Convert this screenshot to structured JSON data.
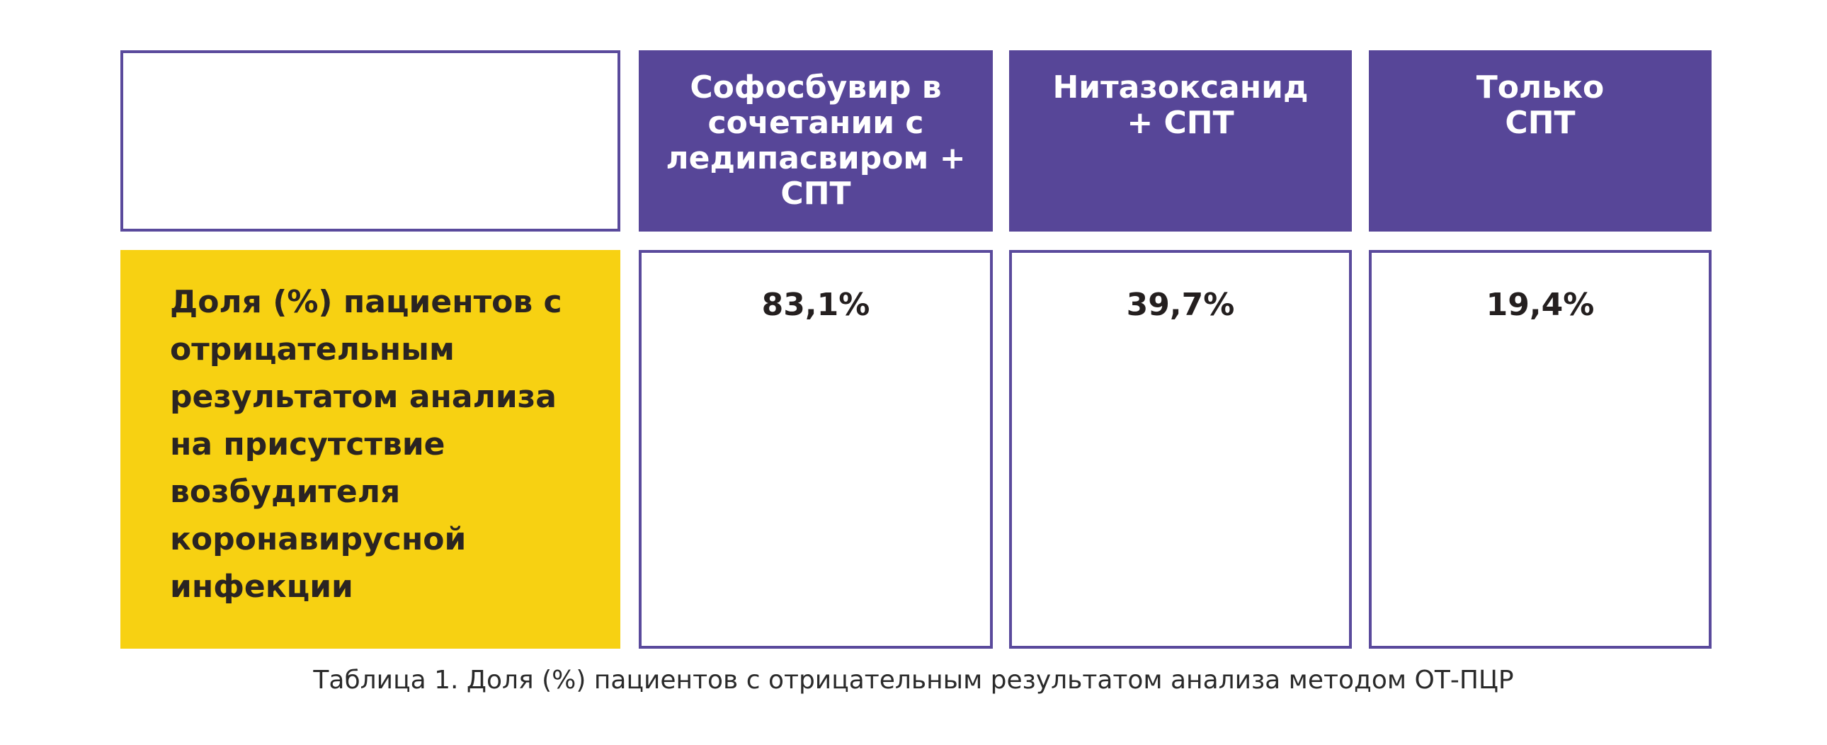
{
  "table": {
    "columns": [
      "Софосбувир в\nсочетании с\nледипасвиром +\nСПТ",
      "Нитазоксанид\n+ СПТ",
      "Только\nСПТ"
    ],
    "row_label": "Доля (%) пациентов с отрицательным результатом анализа на присутствие возбудителя коронавирусной инфекции",
    "values": [
      "83,1%",
      "39,7%",
      "19,4%"
    ]
  },
  "caption": "Таблица 1. Доля (%) пациентов с отрицательным результатом анализа методом ОТ-ПЦР",
  "colors": {
    "header_bg": "#574698",
    "border": "#5a4a9c",
    "row_label_bg": "#f7d112"
  }
}
